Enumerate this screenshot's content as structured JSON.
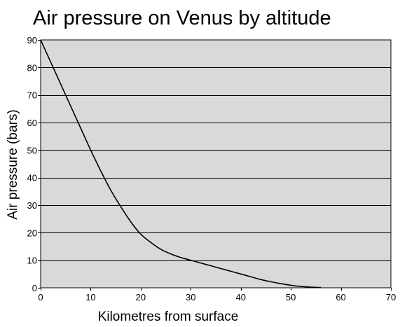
{
  "chart_data": {
    "type": "line",
    "title": "Air pressure on Venus by altitude",
    "xlabel": "Kilometres from surface",
    "ylabel": "Air pressure (bars)",
    "xlim": [
      0,
      70
    ],
    "ylim": [
      0,
      90
    ],
    "xticks": [
      0,
      10,
      20,
      30,
      40,
      50,
      60,
      70
    ],
    "yticks": [
      0,
      10,
      20,
      30,
      40,
      50,
      60,
      70,
      80,
      90
    ],
    "grid": {
      "horizontal": true,
      "vertical": false
    },
    "legend": "none",
    "colors": {
      "plot_background": "#d9d9d9",
      "line": "#000000",
      "grid": "#000000"
    },
    "series": [
      {
        "x": [
          0,
          2,
          4,
          6,
          8,
          10,
          12,
          14,
          16,
          18,
          20,
          22,
          24,
          26,
          28,
          30,
          32,
          34,
          36,
          38,
          40,
          42,
          44,
          46,
          48,
          50,
          52,
          54,
          56
        ],
        "y": [
          90,
          82,
          74,
          66,
          58,
          50,
          42.5,
          35.5,
          29.5,
          24,
          19.5,
          16.5,
          14,
          12.3,
          11,
          10,
          9,
          8,
          7,
          6,
          5,
          4,
          3,
          2.2,
          1.5,
          0.9,
          0.5,
          0.25,
          0.1
        ]
      }
    ]
  }
}
